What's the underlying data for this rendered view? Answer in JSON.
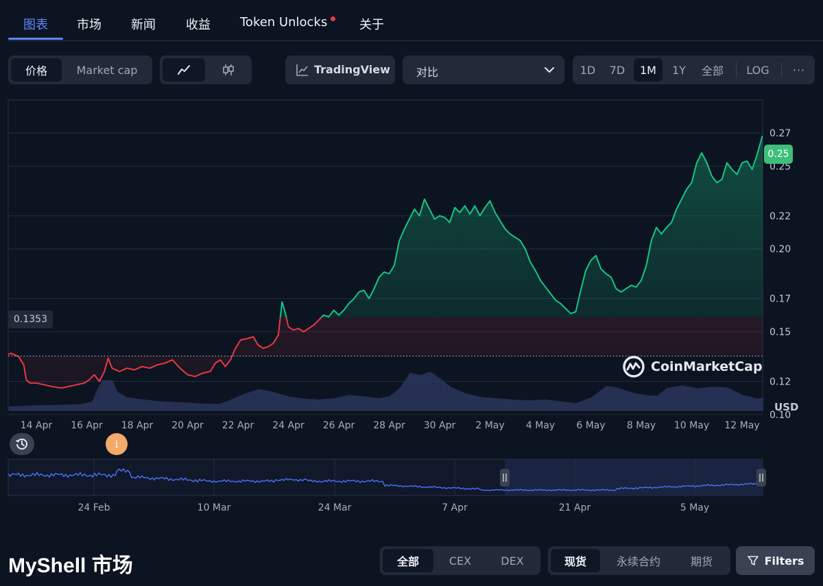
{
  "tabs": [
    {
      "label": "图表",
      "active": true
    },
    {
      "label": "市场"
    },
    {
      "label": "新闻"
    },
    {
      "label": "收益"
    },
    {
      "label": "Token Unlocks",
      "dot": true
    },
    {
      "label": "关于"
    }
  ],
  "toolbar": {
    "metric": [
      "价格",
      "Market cap"
    ],
    "chart_type_icons": [
      "line-chart-icon",
      "candlestick-icon"
    ],
    "tradingview_label": "TradingView",
    "compare": {
      "placeholder": "对比"
    },
    "timeframes": [
      "1D",
      "7D",
      "1M",
      "1Y",
      "全部"
    ],
    "log_label": "LOG",
    "more_label": "···"
  },
  "colors": {
    "accent": "#6188ff",
    "up": "#16c784",
    "down": "#ea3943",
    "current_price_tag": "#3fc07a",
    "volume": "#2c3760",
    "navigator_line": "#4a6df0"
  },
  "chart_data": {
    "type": "area",
    "y_ticks": [
      "0.27",
      "0.25",
      "0.22",
      "0.20",
      "0.17",
      "0.15",
      "0.12",
      "0.10"
    ],
    "y_tick_values": [
      0.27,
      0.25,
      0.22,
      0.2,
      0.17,
      0.15,
      0.12,
      0.1
    ],
    "x_ticks": [
      "14 Apr",
      "16 Apr",
      "18 Apr",
      "20 Apr",
      "22 Apr",
      "24 Apr",
      "26 Apr",
      "28 Apr",
      "30 Apr",
      "2 May",
      "4 May",
      "6 May",
      "8 May",
      "10 May",
      "12 May"
    ],
    "baseline": {
      "value": 0.1353,
      "label": "0.1353"
    },
    "current_price": "0.25",
    "currency": "USD",
    "watermark": "CoinMarketCap",
    "price_series": [
      [
        12.8,
        0.136
      ],
      [
        13.0,
        0.137
      ],
      [
        13.3,
        0.135
      ],
      [
        13.5,
        0.13
      ],
      [
        13.6,
        0.121
      ],
      [
        13.75,
        0.119
      ],
      [
        14.0,
        0.119
      ],
      [
        14.3,
        0.118
      ],
      [
        14.6,
        0.117
      ],
      [
        15.0,
        0.116
      ],
      [
        15.3,
        0.117
      ],
      [
        15.6,
        0.118
      ],
      [
        15.9,
        0.119
      ],
      [
        16.1,
        0.121
      ],
      [
        16.3,
        0.124
      ],
      [
        16.5,
        0.12
      ],
      [
        16.7,
        0.126
      ],
      [
        16.85,
        0.134
      ],
      [
        17.0,
        0.128
      ],
      [
        17.3,
        0.126
      ],
      [
        17.6,
        0.128
      ],
      [
        17.9,
        0.127
      ],
      [
        18.2,
        0.129
      ],
      [
        18.5,
        0.128
      ],
      [
        18.8,
        0.13
      ],
      [
        19.1,
        0.131
      ],
      [
        19.4,
        0.133
      ],
      [
        19.7,
        0.128
      ],
      [
        20.0,
        0.124
      ],
      [
        20.3,
        0.123
      ],
      [
        20.6,
        0.125
      ],
      [
        20.9,
        0.126
      ],
      [
        21.1,
        0.131
      ],
      [
        21.3,
        0.133
      ],
      [
        21.5,
        0.129
      ],
      [
        21.7,
        0.133
      ],
      [
        21.9,
        0.14
      ],
      [
        22.1,
        0.145
      ],
      [
        22.4,
        0.146
      ],
      [
        22.6,
        0.147
      ],
      [
        22.8,
        0.142
      ],
      [
        23.0,
        0.14
      ],
      [
        23.2,
        0.141
      ],
      [
        23.4,
        0.143
      ],
      [
        23.6,
        0.148
      ],
      [
        23.75,
        0.168
      ],
      [
        23.9,
        0.16
      ],
      [
        24.0,
        0.153
      ],
      [
        24.2,
        0.151
      ],
      [
        24.4,
        0.152
      ],
      [
        24.6,
        0.15
      ],
      [
        24.8,
        0.152
      ],
      [
        25.0,
        0.154
      ],
      [
        25.2,
        0.157
      ],
      [
        25.4,
        0.16
      ],
      [
        25.6,
        0.159
      ],
      [
        25.8,
        0.163
      ],
      [
        26.0,
        0.16
      ],
      [
        26.2,
        0.163
      ],
      [
        26.4,
        0.167
      ],
      [
        26.6,
        0.17
      ],
      [
        26.8,
        0.174
      ],
      [
        27.0,
        0.175
      ],
      [
        27.2,
        0.17
      ],
      [
        27.4,
        0.176
      ],
      [
        27.6,
        0.183
      ],
      [
        27.8,
        0.186
      ],
      [
        28.0,
        0.185
      ],
      [
        28.2,
        0.19
      ],
      [
        28.4,
        0.205
      ],
      [
        28.6,
        0.212
      ],
      [
        28.8,
        0.218
      ],
      [
        29.0,
        0.224
      ],
      [
        29.2,
        0.22
      ],
      [
        29.4,
        0.23
      ],
      [
        29.6,
        0.224
      ],
      [
        29.8,
        0.218
      ],
      [
        30.0,
        0.22
      ],
      [
        30.2,
        0.219
      ],
      [
        30.4,
        0.216
      ],
      [
        30.6,
        0.225
      ],
      [
        30.8,
        0.222
      ],
      [
        31.0,
        0.226
      ],
      [
        31.2,
        0.221
      ],
      [
        31.4,
        0.226
      ],
      [
        31.6,
        0.22
      ],
      [
        31.8,
        0.225
      ],
      [
        32.0,
        0.229
      ],
      [
        32.2,
        0.222
      ],
      [
        32.4,
        0.217
      ],
      [
        32.6,
        0.212
      ],
      [
        32.8,
        0.209
      ],
      [
        33.0,
        0.207
      ],
      [
        33.2,
        0.205
      ],
      [
        33.4,
        0.2
      ],
      [
        33.6,
        0.192
      ],
      [
        33.8,
        0.187
      ],
      [
        34.0,
        0.181
      ],
      [
        34.2,
        0.177
      ],
      [
        34.4,
        0.173
      ],
      [
        34.6,
        0.169
      ],
      [
        34.8,
        0.167
      ],
      [
        35.0,
        0.164
      ],
      [
        35.2,
        0.161
      ],
      [
        35.4,
        0.162
      ],
      [
        35.6,
        0.175
      ],
      [
        35.8,
        0.187
      ],
      [
        36.0,
        0.193
      ],
      [
        36.2,
        0.196
      ],
      [
        36.4,
        0.188
      ],
      [
        36.6,
        0.185
      ],
      [
        36.8,
        0.183
      ],
      [
        37.0,
        0.176
      ],
      [
        37.2,
        0.174
      ],
      [
        37.4,
        0.176
      ],
      [
        37.6,
        0.178
      ],
      [
        37.8,
        0.177
      ],
      [
        38.0,
        0.181
      ],
      [
        38.2,
        0.19
      ],
      [
        38.4,
        0.205
      ],
      [
        38.6,
        0.213
      ],
      [
        38.8,
        0.209
      ],
      [
        39.0,
        0.213
      ],
      [
        39.2,
        0.216
      ],
      [
        39.4,
        0.224
      ],
      [
        39.6,
        0.23
      ],
      [
        39.8,
        0.236
      ],
      [
        40.0,
        0.24
      ],
      [
        40.2,
        0.252
      ],
      [
        40.4,
        0.258
      ],
      [
        40.6,
        0.252
      ],
      [
        40.8,
        0.244
      ],
      [
        41.0,
        0.24
      ],
      [
        41.2,
        0.242
      ],
      [
        41.4,
        0.252
      ],
      [
        41.6,
        0.248
      ],
      [
        41.8,
        0.245
      ],
      [
        42.0,
        0.252
      ],
      [
        42.2,
        0.253
      ],
      [
        42.4,
        0.248
      ],
      [
        42.6,
        0.257
      ],
      [
        42.8,
        0.268
      ],
      [
        43.0,
        0.262
      ],
      [
        43.2,
        0.26
      ]
    ],
    "volume_series": [
      [
        12.8,
        0.1
      ],
      [
        13.4,
        0.11
      ],
      [
        14.0,
        0.13
      ],
      [
        15.0,
        0.14
      ],
      [
        15.8,
        0.16
      ],
      [
        16.2,
        0.22
      ],
      [
        16.4,
        0.52
      ],
      [
        16.6,
        0.74
      ],
      [
        17.0,
        0.73
      ],
      [
        17.2,
        0.45
      ],
      [
        17.6,
        0.32
      ],
      [
        18.2,
        0.27
      ],
      [
        19.0,
        0.22
      ],
      [
        19.8,
        0.2
      ],
      [
        20.6,
        0.17
      ],
      [
        21.2,
        0.16
      ],
      [
        21.6,
        0.24
      ],
      [
        22.2,
        0.4
      ],
      [
        22.8,
        0.52
      ],
      [
        23.4,
        0.45
      ],
      [
        24.0,
        0.34
      ],
      [
        24.6,
        0.29
      ],
      [
        25.2,
        0.27
      ],
      [
        25.8,
        0.3
      ],
      [
        26.4,
        0.38
      ],
      [
        27.0,
        0.34
      ],
      [
        27.6,
        0.3
      ],
      [
        28.0,
        0.35
      ],
      [
        28.4,
        0.55
      ],
      [
        28.8,
        0.92
      ],
      [
        29.2,
        0.86
      ],
      [
        29.6,
        0.95
      ],
      [
        30.0,
        0.78
      ],
      [
        30.4,
        0.58
      ],
      [
        31.0,
        0.42
      ],
      [
        31.6,
        0.33
      ],
      [
        32.2,
        0.3
      ],
      [
        33.0,
        0.26
      ],
      [
        33.6,
        0.25
      ],
      [
        34.2,
        0.27
      ],
      [
        34.8,
        0.22
      ],
      [
        35.4,
        0.18
      ],
      [
        36.0,
        0.32
      ],
      [
        36.6,
        0.6
      ],
      [
        37.0,
        0.56
      ],
      [
        37.6,
        0.44
      ],
      [
        38.2,
        0.37
      ],
      [
        38.6,
        0.36
      ],
      [
        39.0,
        0.55
      ],
      [
        39.6,
        0.61
      ],
      [
        40.2,
        0.54
      ],
      [
        40.8,
        0.58
      ],
      [
        41.4,
        0.56
      ],
      [
        42.0,
        0.38
      ],
      [
        42.6,
        0.29
      ],
      [
        43.0,
        0.34
      ],
      [
        43.2,
        0.38
      ]
    ]
  },
  "navigator": {
    "date_labels": [
      "24 Feb",
      "10 Mar",
      "24 Mar",
      "7 Apr",
      "21 Apr",
      "5 May"
    ]
  },
  "markers": {
    "history_icon": "history-icon",
    "info_icon": "info-icon"
  },
  "bottom": {
    "title": "MyShell 市场",
    "exchange_filters": [
      "全部",
      "CEX",
      "DEX"
    ],
    "contract_filters": [
      "现货",
      "永续合约",
      "期货"
    ],
    "filters_label": "Filters"
  }
}
